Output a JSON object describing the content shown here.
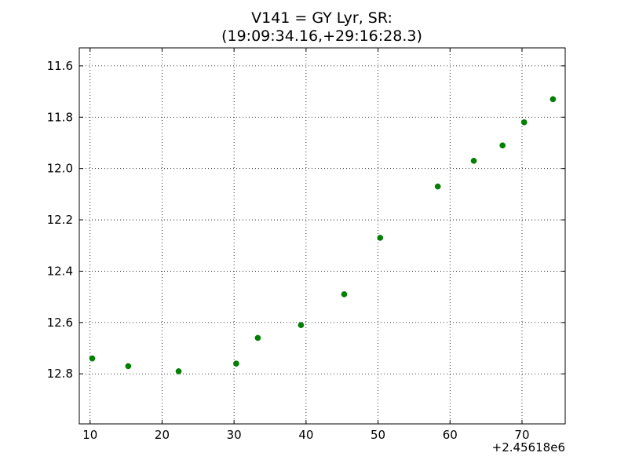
{
  "chart_data": {
    "type": "scatter",
    "title": "V141 = GY Lyr, SR:",
    "subtitle": "(19:09:34.16,+29:16:28.3)",
    "xlabel": "",
    "ylabel": "",
    "x_offset_label": "+2.45618e6",
    "x_offset": 2456180,
    "xlim": [
      8.5,
      76
    ],
    "ylim": [
      12.995,
      11.53
    ],
    "y_inverted": true,
    "x_ticks": [
      10,
      20,
      30,
      40,
      50,
      60,
      70
    ],
    "y_ticks": [
      11.6,
      11.8,
      12.0,
      12.2,
      12.4,
      12.6,
      12.8
    ],
    "x_tick_labels": [
      "10",
      "20",
      "30",
      "40",
      "50",
      "60",
      "70"
    ],
    "y_tick_labels": [
      "11.6",
      "11.8",
      "12.0",
      "12.2",
      "12.4",
      "12.6",
      "12.8"
    ],
    "grid": true,
    "marker_color": "#007f00",
    "points": [
      {
        "x": 10.3,
        "y": 12.74
      },
      {
        "x": 15.3,
        "y": 12.77
      },
      {
        "x": 22.3,
        "y": 12.79
      },
      {
        "x": 30.3,
        "y": 12.76
      },
      {
        "x": 33.3,
        "y": 12.66
      },
      {
        "x": 39.3,
        "y": 12.61
      },
      {
        "x": 45.3,
        "y": 12.49
      },
      {
        "x": 50.3,
        "y": 12.27
      },
      {
        "x": 58.3,
        "y": 12.07
      },
      {
        "x": 63.3,
        "y": 11.97
      },
      {
        "x": 67.3,
        "y": 11.91
      },
      {
        "x": 70.3,
        "y": 11.82
      },
      {
        "x": 74.3,
        "y": 11.73
      }
    ]
  }
}
